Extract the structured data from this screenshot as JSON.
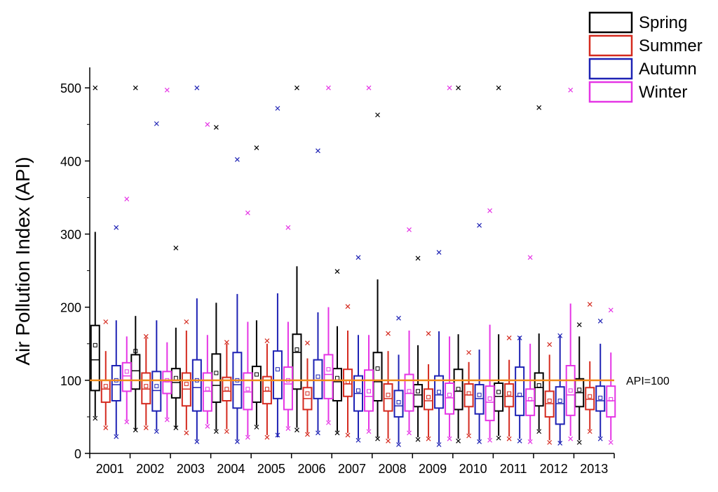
{
  "chart_data": {
    "type": "box",
    "title": "",
    "xlabel": "",
    "ylabel": "Air Pollution Index (API)",
    "ylim": [
      0,
      520
    ],
    "yticks": [
      0,
      100,
      200,
      300,
      400,
      500
    ],
    "categories": [
      "2001",
      "2002",
      "2003",
      "2004",
      "2005",
      "2006",
      "2007",
      "2008",
      "2009",
      "2010",
      "2011",
      "2012",
      "2013"
    ],
    "reference_line": {
      "value": 100,
      "label": "API=100",
      "color": "#f08a1c"
    },
    "legend": {
      "position": "top-right"
    },
    "series": [
      {
        "name": "Spring",
        "color": "#000000",
        "boxes": [
          {
            "whislo": 50,
            "q1": 86,
            "med": 128,
            "q3": 175,
            "whishi": 303,
            "mean": 148,
            "flier_lo": 48,
            "flier_hi": 500
          },
          {
            "whislo": 33,
            "q1": 88,
            "med": 113,
            "q3": 135,
            "whishi": 188,
            "mean": 140,
            "flier_lo": 32,
            "flier_hi": 500
          },
          {
            "whislo": 36,
            "q1": 76,
            "med": 97,
            "q3": 116,
            "whishi": 172,
            "mean": 103,
            "flier_lo": 35,
            "flier_hi": 281
          },
          {
            "whislo": 32,
            "q1": 70,
            "med": 93,
            "q3": 136,
            "whishi": 206,
            "mean": 110,
            "flier_lo": 30,
            "flier_hi": 446
          },
          {
            "whislo": 38,
            "q1": 70,
            "med": 100,
            "q3": 119,
            "whishi": 182,
            "mean": 108,
            "flier_lo": 36,
            "flier_hi": 418
          },
          {
            "whislo": 35,
            "q1": 88,
            "med": 138,
            "q3": 163,
            "whishi": 256,
            "mean": 142,
            "flier_lo": 32,
            "flier_hi": 500
          },
          {
            "whislo": 30,
            "q1": 72,
            "med": 98,
            "q3": 116,
            "whishi": 174,
            "mean": 103,
            "flier_lo": 28,
            "flier_hi": 249
          },
          {
            "whislo": 22,
            "q1": 72,
            "med": 98,
            "q3": 138,
            "whishi": 238,
            "mean": 116,
            "flier_lo": 20,
            "flier_hi": 463
          },
          {
            "whislo": 22,
            "q1": 64,
            "med": 80,
            "q3": 94,
            "whishi": 148,
            "mean": 85,
            "flier_lo": 19,
            "flier_hi": 267
          },
          {
            "whislo": 20,
            "q1": 60,
            "med": 85,
            "q3": 115,
            "whishi": 163,
            "mean": 88,
            "flier_lo": 17,
            "flier_hi": 500
          },
          {
            "whislo": 24,
            "q1": 58,
            "med": 78,
            "q3": 96,
            "whishi": 163,
            "mean": 84,
            "flier_lo": 21,
            "flier_hi": 500
          },
          {
            "whislo": 32,
            "q1": 65,
            "med": 90,
            "q3": 110,
            "whishi": 164,
            "mean": 93,
            "flier_lo": 30,
            "flier_hi": 473
          },
          {
            "whislo": 18,
            "q1": 64,
            "med": 83,
            "q3": 102,
            "whishi": 160,
            "mean": 87,
            "flier_lo": 15,
            "flier_hi": 176
          }
        ]
      },
      {
        "name": "Summer",
        "color": "#d42a1f",
        "boxes": [
          {
            "whislo": 38,
            "q1": 70,
            "med": 88,
            "q3": 100,
            "whishi": 140,
            "mean": 92,
            "flier_lo": 35,
            "flier_hi": 180
          },
          {
            "whislo": 38,
            "q1": 68,
            "med": 88,
            "q3": 110,
            "whishi": 158,
            "mean": 92,
            "flier_lo": 35,
            "flier_hi": 160
          },
          {
            "whislo": 32,
            "q1": 65,
            "med": 88,
            "q3": 110,
            "whishi": 168,
            "mean": 95,
            "flier_lo": 28,
            "flier_hi": 180
          },
          {
            "whislo": 33,
            "q1": 72,
            "med": 85,
            "q3": 104,
            "whishi": 150,
            "mean": 88,
            "flier_lo": 30,
            "flier_hi": 152
          },
          {
            "whislo": 25,
            "q1": 68,
            "med": 85,
            "q3": 105,
            "whishi": 150,
            "mean": 88,
            "flier_lo": 22,
            "flier_hi": 154
          },
          {
            "whislo": 28,
            "q1": 60,
            "med": 75,
            "q3": 90,
            "whishi": 130,
            "mean": 82,
            "flier_lo": 26,
            "flier_hi": 151
          },
          {
            "whislo": 28,
            "q1": 78,
            "med": 95,
            "q3": 115,
            "whishi": 168,
            "mean": 98,
            "flier_lo": 25,
            "flier_hi": 201
          },
          {
            "whislo": 20,
            "q1": 58,
            "med": 75,
            "q3": 95,
            "whishi": 140,
            "mean": 80,
            "flier_lo": 17,
            "flier_hi": 164
          },
          {
            "whislo": 22,
            "q1": 60,
            "med": 72,
            "q3": 88,
            "whishi": 122,
            "mean": 77,
            "flier_lo": 20,
            "flier_hi": 164
          },
          {
            "whislo": 26,
            "q1": 64,
            "med": 80,
            "q3": 95,
            "whishi": 125,
            "mean": 82,
            "flier_lo": 24,
            "flier_hi": 138
          },
          {
            "whislo": 23,
            "q1": 64,
            "med": 78,
            "q3": 95,
            "whishi": 128,
            "mean": 82,
            "flier_lo": 20,
            "flier_hi": 158
          },
          {
            "whislo": 18,
            "q1": 50,
            "med": 68,
            "q3": 85,
            "whishi": 135,
            "mean": 72,
            "flier_lo": 15,
            "flier_hi": 149
          },
          {
            "whislo": 32,
            "q1": 60,
            "med": 74,
            "q3": 90,
            "whishi": 126,
            "mean": 78,
            "flier_lo": 30,
            "flier_hi": 204
          }
        ]
      },
      {
        "name": "Autumn",
        "color": "#1e22b4",
        "boxes": [
          {
            "whislo": 25,
            "q1": 72,
            "med": 94,
            "q3": 120,
            "whishi": 182,
            "mean": 100,
            "flier_lo": 23,
            "flier_hi": 309
          },
          {
            "whislo": 32,
            "q1": 58,
            "med": 86,
            "q3": 112,
            "whishi": 182,
            "mean": 92,
            "flier_lo": 30,
            "flier_hi": 451
          },
          {
            "whislo": 18,
            "q1": 58,
            "med": 90,
            "q3": 128,
            "whishi": 212,
            "mean": 100,
            "flier_lo": 16,
            "flier_hi": 500
          },
          {
            "whislo": 18,
            "q1": 62,
            "med": 94,
            "q3": 138,
            "whishi": 218,
            "mean": 100,
            "flier_lo": 16,
            "flier_hi": 402
          },
          {
            "whislo": 22,
            "q1": 75,
            "med": 100,
            "q3": 140,
            "whishi": 219,
            "mean": 115,
            "flier_lo": 25,
            "flier_hi": 472
          },
          {
            "whislo": 30,
            "q1": 75,
            "med": 100,
            "q3": 128,
            "whishi": 193,
            "mean": 105,
            "flier_lo": 28,
            "flier_hi": 414
          },
          {
            "whislo": 20,
            "q1": 58,
            "med": 82,
            "q3": 106,
            "whishi": 162,
            "mean": 86,
            "flier_lo": 18,
            "flier_hi": 268
          },
          {
            "whislo": 14,
            "q1": 50,
            "med": 65,
            "q3": 86,
            "whishi": 135,
            "mean": 70,
            "flier_lo": 12,
            "flier_hi": 185
          },
          {
            "whislo": 14,
            "q1": 62,
            "med": 80,
            "q3": 106,
            "whishi": 167,
            "mean": 84,
            "flier_lo": 12,
            "flier_hi": 275
          },
          {
            "whislo": 18,
            "q1": 54,
            "med": 75,
            "q3": 94,
            "whishi": 142,
            "mean": 80,
            "flier_lo": 16,
            "flier_hi": 312
          },
          {
            "whislo": 20,
            "q1": 52,
            "med": 78,
            "q3": 118,
            "whishi": 160,
            "mean": 80,
            "flier_lo": 17,
            "flier_hi": 158
          },
          {
            "whislo": 15,
            "q1": 40,
            "med": 68,
            "q3": 91,
            "whishi": 160,
            "mean": 72,
            "flier_lo": 14,
            "flier_hi": 161
          },
          {
            "whislo": 22,
            "q1": 58,
            "med": 72,
            "q3": 92,
            "whishi": 150,
            "mean": 76,
            "flier_lo": 20,
            "flier_hi": 181
          }
        ]
      },
      {
        "name": "Winter",
        "color": "#e535e5",
        "boxes": [
          {
            "whislo": 45,
            "q1": 85,
            "med": 106,
            "q3": 124,
            "whishi": 160,
            "mean": 112,
            "flier_lo": 43,
            "flier_hi": 348
          },
          {
            "whislo": 48,
            "q1": 82,
            "med": 98,
            "q3": 112,
            "whishi": 152,
            "mean": 100,
            "flier_lo": 46,
            "flier_hi": 497
          },
          {
            "whislo": 40,
            "q1": 58,
            "med": 85,
            "q3": 110,
            "whishi": 162,
            "mean": 88,
            "flier_lo": 37,
            "flier_hi": 450
          },
          {
            "whislo": 24,
            "q1": 60,
            "med": 84,
            "q3": 110,
            "whishi": 180,
            "mean": 88,
            "flier_lo": 22,
            "flier_hi": 329
          },
          {
            "whislo": 36,
            "q1": 60,
            "med": 95,
            "q3": 118,
            "whishi": 180,
            "mean": 100,
            "flier_lo": 34,
            "flier_hi": 309
          },
          {
            "whislo": 44,
            "q1": 75,
            "med": 108,
            "q3": 135,
            "whishi": 200,
            "mean": 115,
            "flier_lo": 42,
            "flier_hi": 500
          },
          {
            "whislo": 32,
            "q1": 58,
            "med": 78,
            "q3": 114,
            "whishi": 162,
            "mean": 85,
            "flier_lo": 30,
            "flier_hi": 500
          },
          {
            "whislo": 30,
            "q1": 58,
            "med": 82,
            "q3": 108,
            "whishi": 168,
            "mean": 85,
            "flier_lo": 28,
            "flier_hi": 306
          },
          {
            "whislo": 22,
            "q1": 54,
            "med": 76,
            "q3": 96,
            "whishi": 160,
            "mean": 80,
            "flier_lo": 20,
            "flier_hi": 500
          },
          {
            "whislo": 20,
            "q1": 45,
            "med": 70,
            "q3": 92,
            "whishi": 176,
            "mean": 75,
            "flier_lo": 18,
            "flier_hi": 332
          },
          {
            "whislo": 18,
            "q1": 52,
            "med": 72,
            "q3": 88,
            "whishi": 150,
            "mean": 74,
            "flier_lo": 16,
            "flier_hi": 268
          },
          {
            "whislo": 24,
            "q1": 52,
            "med": 80,
            "q3": 120,
            "whishi": 205,
            "mean": 86,
            "flier_lo": 20,
            "flier_hi": 497
          },
          {
            "whislo": 18,
            "q1": 50,
            "med": 72,
            "q3": 92,
            "whishi": 138,
            "mean": 74,
            "flier_lo": 15,
            "flier_hi": 196
          }
        ]
      }
    ]
  }
}
